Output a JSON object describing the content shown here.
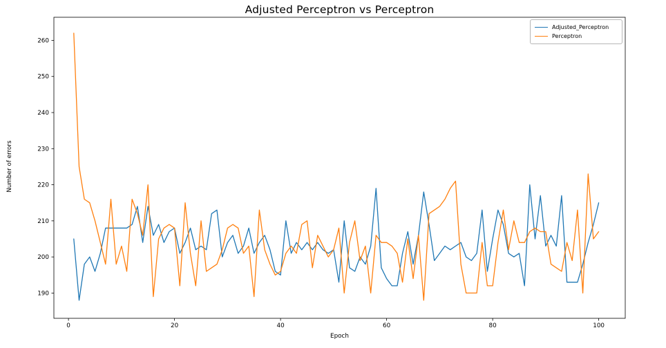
{
  "chart_data": {
    "type": "line",
    "title": "Adjusted Perceptron vs Perceptron",
    "xlabel": "Epoch",
    "ylabel": "Number of errors",
    "x_start_epoch": 1,
    "xticks": [
      0,
      20,
      40,
      60,
      80,
      100
    ],
    "yticks": [
      190,
      200,
      210,
      220,
      230,
      240,
      250,
      260
    ],
    "xlim": [
      -2.75,
      105.0
    ],
    "ylim": [
      183.0,
      266.4
    ],
    "grid": false,
    "legend_position": "upper right",
    "series": [
      {
        "name": "Adjusted_Perceptron",
        "color": "#1f77b4",
        "values": [
          205,
          188,
          198,
          200,
          196,
          201,
          208,
          208,
          208,
          208,
          208,
          209,
          214,
          204,
          214,
          206,
          209,
          204,
          207,
          208,
          201,
          204,
          208,
          202,
          203,
          202,
          212,
          213,
          200,
          204,
          206,
          201,
          203,
          208,
          201,
          204,
          206,
          202,
          196,
          195,
          210,
          201,
          204,
          202,
          204,
          202,
          204,
          202,
          201,
          202,
          193,
          210,
          197,
          196,
          200,
          198,
          203,
          219,
          197,
          194,
          192,
          192,
          201,
          207,
          198,
          206,
          218,
          209,
          199,
          201,
          203,
          202,
          203,
          204,
          200,
          199,
          201,
          213,
          196,
          205,
          213,
          209,
          201,
          200,
          201,
          192,
          220,
          205,
          217,
          203,
          206,
          203,
          217,
          193,
          193,
          193,
          198,
          204,
          209,
          215
        ]
      },
      {
        "name": "Perceptron",
        "color": "#ff7f0e",
        "values": [
          262,
          225,
          216,
          215,
          210,
          204,
          198,
          216,
          198,
          203,
          196,
          216,
          212,
          206,
          220,
          189,
          205,
          208,
          209,
          208,
          192,
          215,
          201,
          192,
          210,
          196,
          197,
          198,
          202,
          208,
          209,
          208,
          201,
          203,
          189,
          213,
          202,
          198,
          195,
          196,
          201,
          203,
          201,
          209,
          210,
          197,
          206,
          203,
          200,
          202,
          208,
          190,
          204,
          210,
          199,
          203,
          190,
          206,
          204,
          204,
          203,
          201,
          193,
          205,
          194,
          206,
          188,
          212,
          213,
          214,
          216,
          219,
          221,
          198,
          190,
          190,
          190,
          204,
          192,
          192,
          204,
          213,
          202,
          210,
          204,
          204,
          207,
          208,
          207,
          207,
          198,
          197,
          196,
          204,
          199,
          213,
          190,
          223,
          205,
          207
        ]
      }
    ]
  },
  "legend": {
    "items": [
      {
        "label": "Adjusted_Perceptron",
        "color": "#1f77b4"
      },
      {
        "label": "Perceptron",
        "color": "#ff7f0e"
      }
    ]
  },
  "axes": {
    "spine_color": "#000000",
    "tick_color": "#000000",
    "tick_label_color": "#000000"
  }
}
